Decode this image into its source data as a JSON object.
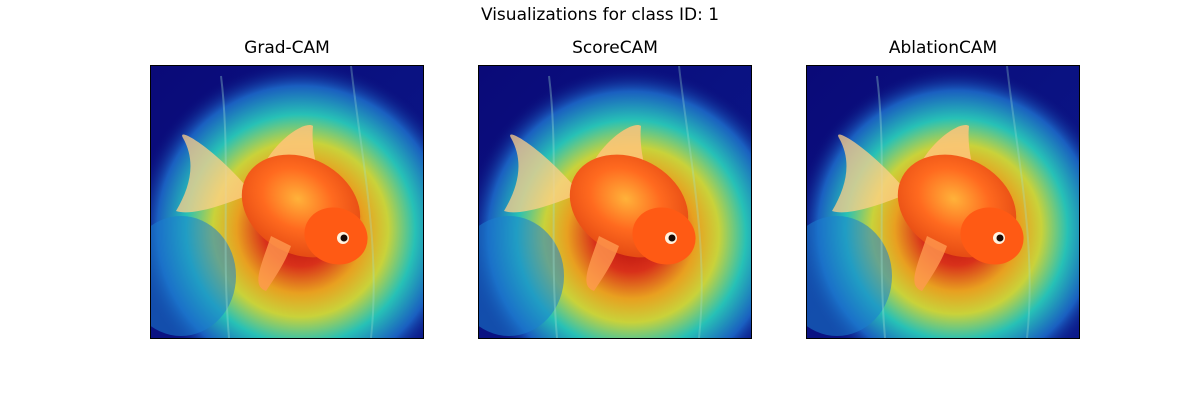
{
  "figure": {
    "suptitle": "Visualizations for class ID: 1"
  },
  "panels": [
    {
      "title": "Grad-CAM",
      "image_icon": "goldfish-heatmap-image"
    },
    {
      "title": "ScoreCAM",
      "image_icon": "goldfish-heatmap-image"
    },
    {
      "title": "AblationCAM",
      "image_icon": "goldfish-heatmap-image"
    }
  ],
  "colors": {
    "heatmap_cold": "#0a0a78",
    "heatmap_mid": "#22c4b8",
    "heatmap_warm": "#f2e11a",
    "heatmap_hot": "#c3120d",
    "fish_orange": "#ff6a1f"
  }
}
